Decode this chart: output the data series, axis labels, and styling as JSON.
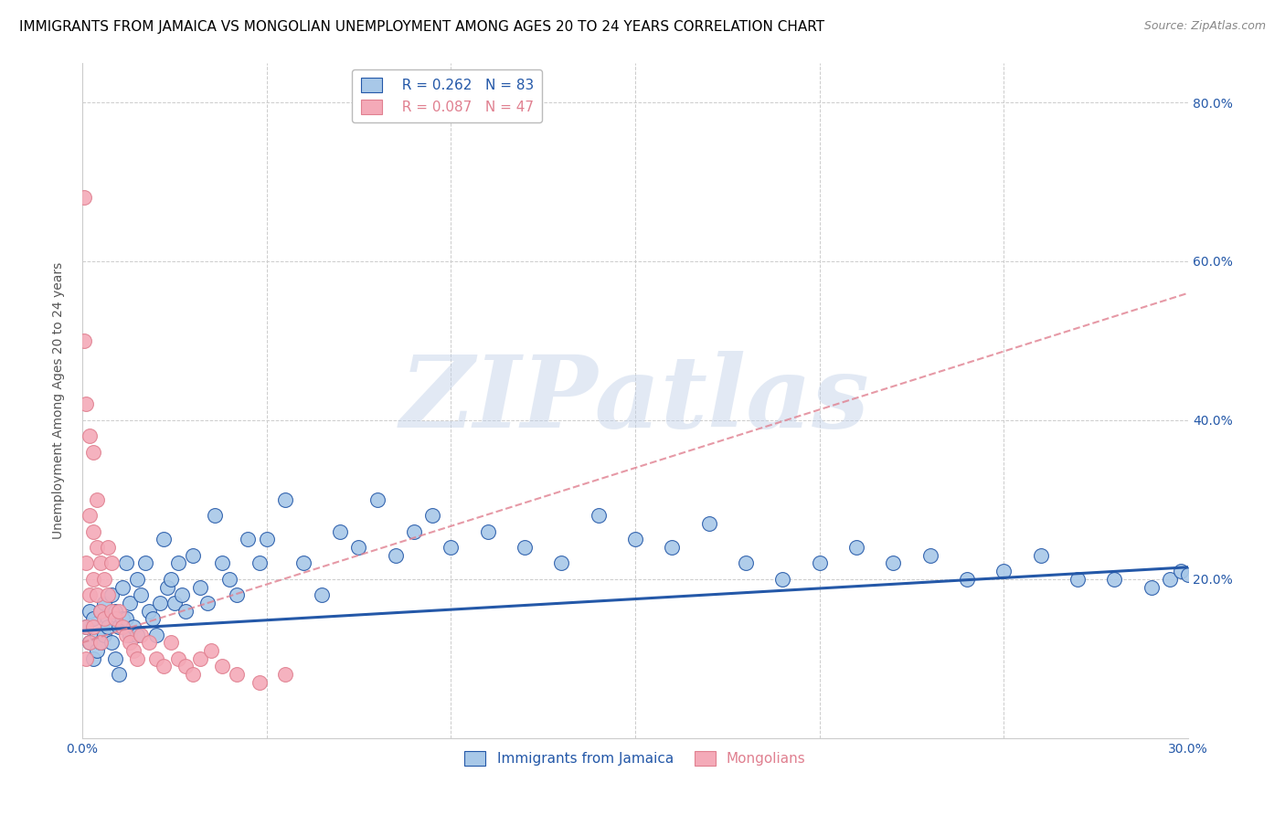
{
  "title": "IMMIGRANTS FROM JAMAICA VS MONGOLIAN UNEMPLOYMENT AMONG AGES 20 TO 24 YEARS CORRELATION CHART",
  "source": "Source: ZipAtlas.com",
  "ylabel": "Unemployment Among Ages 20 to 24 years",
  "watermark": "ZIPatlas",
  "x_min": 0.0,
  "x_max": 0.3,
  "y_min": 0.0,
  "y_max": 0.85,
  "y_ticks": [
    0.0,
    0.2,
    0.4,
    0.6,
    0.8
  ],
  "y_tick_labels": [
    "",
    "20.0%",
    "40.0%",
    "60.0%",
    "80.0%"
  ],
  "x_ticks": [
    0.0,
    0.05,
    0.1,
    0.15,
    0.2,
    0.25,
    0.3
  ],
  "x_tick_labels": [
    "0.0%",
    "",
    "",
    "",
    "",
    "",
    "30.0%"
  ],
  "blue_scatter_x": [
    0.001,
    0.002,
    0.002,
    0.003,
    0.003,
    0.004,
    0.004,
    0.005,
    0.005,
    0.006,
    0.006,
    0.007,
    0.007,
    0.008,
    0.008,
    0.009,
    0.009,
    0.01,
    0.01,
    0.011,
    0.011,
    0.012,
    0.012,
    0.013,
    0.013,
    0.014,
    0.015,
    0.015,
    0.016,
    0.017,
    0.018,
    0.019,
    0.02,
    0.021,
    0.022,
    0.023,
    0.024,
    0.025,
    0.026,
    0.027,
    0.028,
    0.03,
    0.032,
    0.034,
    0.036,
    0.038,
    0.04,
    0.042,
    0.045,
    0.048,
    0.05,
    0.055,
    0.06,
    0.065,
    0.07,
    0.075,
    0.08,
    0.085,
    0.09,
    0.095,
    0.1,
    0.11,
    0.12,
    0.13,
    0.14,
    0.15,
    0.16,
    0.17,
    0.18,
    0.19,
    0.2,
    0.21,
    0.22,
    0.23,
    0.24,
    0.25,
    0.26,
    0.27,
    0.28,
    0.29,
    0.295,
    0.298,
    0.3
  ],
  "blue_scatter_y": [
    0.14,
    0.16,
    0.12,
    0.15,
    0.1,
    0.13,
    0.11,
    0.16,
    0.12,
    0.17,
    0.13,
    0.15,
    0.14,
    0.18,
    0.12,
    0.16,
    0.1,
    0.14,
    0.08,
    0.19,
    0.15,
    0.22,
    0.15,
    0.17,
    0.13,
    0.14,
    0.2,
    0.13,
    0.18,
    0.22,
    0.16,
    0.15,
    0.13,
    0.17,
    0.25,
    0.19,
    0.2,
    0.17,
    0.22,
    0.18,
    0.16,
    0.23,
    0.19,
    0.17,
    0.28,
    0.22,
    0.2,
    0.18,
    0.25,
    0.22,
    0.25,
    0.3,
    0.22,
    0.18,
    0.26,
    0.24,
    0.3,
    0.23,
    0.26,
    0.28,
    0.24,
    0.26,
    0.24,
    0.22,
    0.28,
    0.25,
    0.24,
    0.27,
    0.22,
    0.2,
    0.22,
    0.24,
    0.22,
    0.23,
    0.2,
    0.21,
    0.23,
    0.2,
    0.2,
    0.19,
    0.2,
    0.21,
    0.205
  ],
  "pink_scatter_x": [
    0.0005,
    0.0005,
    0.001,
    0.001,
    0.001,
    0.001,
    0.002,
    0.002,
    0.002,
    0.002,
    0.003,
    0.003,
    0.003,
    0.003,
    0.004,
    0.004,
    0.004,
    0.005,
    0.005,
    0.005,
    0.006,
    0.006,
    0.007,
    0.007,
    0.008,
    0.008,
    0.009,
    0.01,
    0.011,
    0.012,
    0.013,
    0.014,
    0.015,
    0.016,
    0.018,
    0.02,
    0.022,
    0.024,
    0.026,
    0.028,
    0.03,
    0.032,
    0.035,
    0.038,
    0.042,
    0.048,
    0.055
  ],
  "pink_scatter_y": [
    0.68,
    0.5,
    0.42,
    0.22,
    0.14,
    0.1,
    0.38,
    0.28,
    0.18,
    0.12,
    0.36,
    0.26,
    0.2,
    0.14,
    0.3,
    0.24,
    0.18,
    0.22,
    0.16,
    0.12,
    0.2,
    0.15,
    0.24,
    0.18,
    0.22,
    0.16,
    0.15,
    0.16,
    0.14,
    0.13,
    0.12,
    0.11,
    0.1,
    0.13,
    0.12,
    0.1,
    0.09,
    0.12,
    0.1,
    0.09,
    0.08,
    0.1,
    0.11,
    0.09,
    0.08,
    0.07,
    0.08
  ],
  "blue_line_x": [
    0.0,
    0.3
  ],
  "blue_line_y": [
    0.135,
    0.215
  ],
  "pink_line_x": [
    0.0,
    0.3
  ],
  "pink_line_y": [
    0.12,
    0.56
  ],
  "blue_color": "#2458a8",
  "blue_scatter_color": "#a8c8e8",
  "pink_color": "#e08090",
  "pink_scatter_color": "#f4aab8",
  "grid_color": "#cccccc",
  "title_fontsize": 11,
  "source_fontsize": 9,
  "axis_label_fontsize": 10,
  "tick_fontsize": 10,
  "legend_fontsize": 11,
  "watermark_color": "#c0d0e8",
  "watermark_alpha": 0.45
}
